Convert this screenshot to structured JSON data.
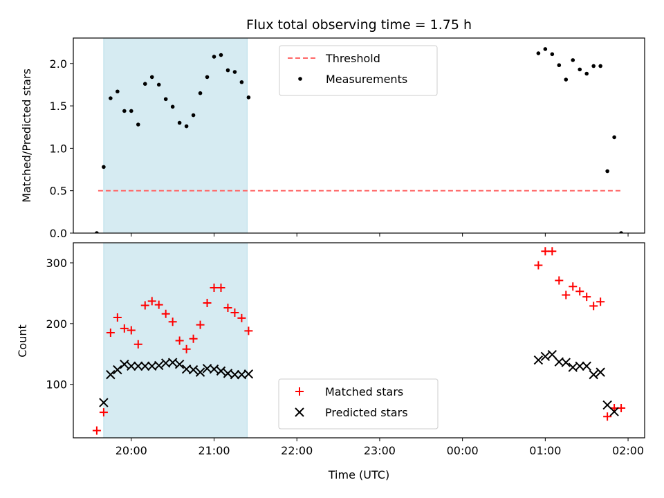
{
  "chart_data": [
    {
      "type": "scatter",
      "title": "Flux total observing time = 1.75 h",
      "xlabel": "",
      "ylabel": "Matched/Predicted stars",
      "xlim": [
        "19:18",
        "02:12"
      ],
      "ylim": [
        0,
        2.3
      ],
      "yticks": [
        "0.0",
        "0.5",
        "1.0",
        "1.5",
        "2.0"
      ],
      "grid": false,
      "legend_position": "upper-center",
      "shaded_interval": {
        "x_start": "19:40",
        "x_end": "21:24",
        "color": "#add8e6"
      },
      "threshold": {
        "name": "Threshold",
        "value": 0.5,
        "x_start": "19:36",
        "x_end": "01:55",
        "color": "#ff6666"
      },
      "series": [
        {
          "name": "Measurements",
          "color": "#000000",
          "points": [
            [
              "19:35",
              0.0
            ],
            [
              "19:40",
              0.78
            ],
            [
              "19:45",
              1.59
            ],
            [
              "19:50",
              1.67
            ],
            [
              "19:55",
              1.44
            ],
            [
              "20:00",
              1.44
            ],
            [
              "20:05",
              1.28
            ],
            [
              "20:10",
              1.76
            ],
            [
              "20:15",
              1.84
            ],
            [
              "20:20",
              1.75
            ],
            [
              "20:25",
              1.58
            ],
            [
              "20:30",
              1.49
            ],
            [
              "20:35",
              1.3
            ],
            [
              "20:40",
              1.26
            ],
            [
              "20:45",
              1.39
            ],
            [
              "20:50",
              1.65
            ],
            [
              "20:55",
              1.84
            ],
            [
              "21:00",
              2.08
            ],
            [
              "21:05",
              2.1
            ],
            [
              "21:10",
              1.92
            ],
            [
              "21:15",
              1.9
            ],
            [
              "21:20",
              1.78
            ],
            [
              "21:25",
              1.6
            ],
            [
              "00:55",
              2.12
            ],
            [
              "01:00",
              2.17
            ],
            [
              "01:05",
              2.11
            ],
            [
              "01:10",
              1.98
            ],
            [
              "01:15",
              1.81
            ],
            [
              "01:20",
              2.04
            ],
            [
              "01:25",
              1.93
            ],
            [
              "01:30",
              1.88
            ],
            [
              "01:35",
              1.97
            ],
            [
              "01:40",
              1.97
            ],
            [
              "01:45",
              0.73
            ],
            [
              "01:50",
              1.13
            ],
            [
              "01:55",
              0.0
            ]
          ]
        }
      ]
    },
    {
      "type": "scatter",
      "title": "",
      "xlabel": "Time (UTC)",
      "ylabel": "Count",
      "xlim": [
        "19:18",
        "02:12"
      ],
      "ylim": [
        12,
        333
      ],
      "yticks": [
        "100",
        "200",
        "300"
      ],
      "xticks": [
        "20:00",
        "21:00",
        "22:00",
        "23:00",
        "00:00",
        "01:00",
        "02:00"
      ],
      "grid": false,
      "legend_position": "lower-center",
      "shaded_interval": {
        "x_start": "19:40",
        "x_end": "21:24",
        "color": "#add8e6"
      },
      "series": [
        {
          "name": "Matched stars",
          "marker": "plus",
          "color": "#ff0000",
          "points": [
            [
              "19:35",
              24
            ],
            [
              "19:40",
              54
            ],
            [
              "19:45",
              185
            ],
            [
              "19:50",
              210
            ],
            [
              "19:55",
              192
            ],
            [
              "20:00",
              189
            ],
            [
              "20:05",
              166
            ],
            [
              "20:10",
              230
            ],
            [
              "20:15",
              237
            ],
            [
              "20:20",
              231
            ],
            [
              "20:25",
              216
            ],
            [
              "20:30",
              203
            ],
            [
              "20:35",
              172
            ],
            [
              "20:40",
              158
            ],
            [
              "20:45",
              175
            ],
            [
              "20:50",
              198
            ],
            [
              "20:55",
              234
            ],
            [
              "21:00",
              259
            ],
            [
              "21:05",
              259
            ],
            [
              "21:10",
              226
            ],
            [
              "21:15",
              218
            ],
            [
              "21:20",
              209
            ],
            [
              "21:25",
              188
            ],
            [
              "00:55",
              296
            ],
            [
              "01:00",
              319
            ],
            [
              "01:05",
              319
            ],
            [
              "01:10",
              271
            ],
            [
              "01:15",
              247
            ],
            [
              "01:20",
              261
            ],
            [
              "01:25",
              253
            ],
            [
              "01:30",
              244
            ],
            [
              "01:35",
              229
            ],
            [
              "01:40",
              236
            ],
            [
              "01:45",
              47
            ],
            [
              "01:50",
              61
            ],
            [
              "01:55",
              61
            ]
          ]
        },
        {
          "name": "Predicted stars",
          "marker": "x",
          "color": "#000000",
          "points": [
            [
              "19:40",
              70
            ],
            [
              "19:45",
              116
            ],
            [
              "19:50",
              124
            ],
            [
              "19:55",
              133
            ],
            [
              "20:00",
              130
            ],
            [
              "20:05",
              130
            ],
            [
              "20:10",
              130
            ],
            [
              "20:15",
              130
            ],
            [
              "20:20",
              131
            ],
            [
              "20:25",
              135
            ],
            [
              "20:30",
              136
            ],
            [
              "20:35",
              133
            ],
            [
              "20:40",
              125
            ],
            [
              "20:45",
              124
            ],
            [
              "20:50",
              120
            ],
            [
              "20:55",
              126
            ],
            [
              "21:00",
              125
            ],
            [
              "21:05",
              122
            ],
            [
              "21:10",
              118
            ],
            [
              "21:15",
              116
            ],
            [
              "21:20",
              116
            ],
            [
              "21:25",
              117
            ],
            [
              "00:55",
              140
            ],
            [
              "01:00",
              146
            ],
            [
              "01:05",
              149
            ],
            [
              "01:10",
              137
            ],
            [
              "01:15",
              136
            ],
            [
              "01:20",
              128
            ],
            [
              "01:25",
              130
            ],
            [
              "01:30",
              130
            ],
            [
              "01:35",
              116
            ],
            [
              "01:40",
              120
            ],
            [
              "01:45",
              66
            ],
            [
              "01:50",
              55
            ]
          ]
        }
      ]
    }
  ]
}
